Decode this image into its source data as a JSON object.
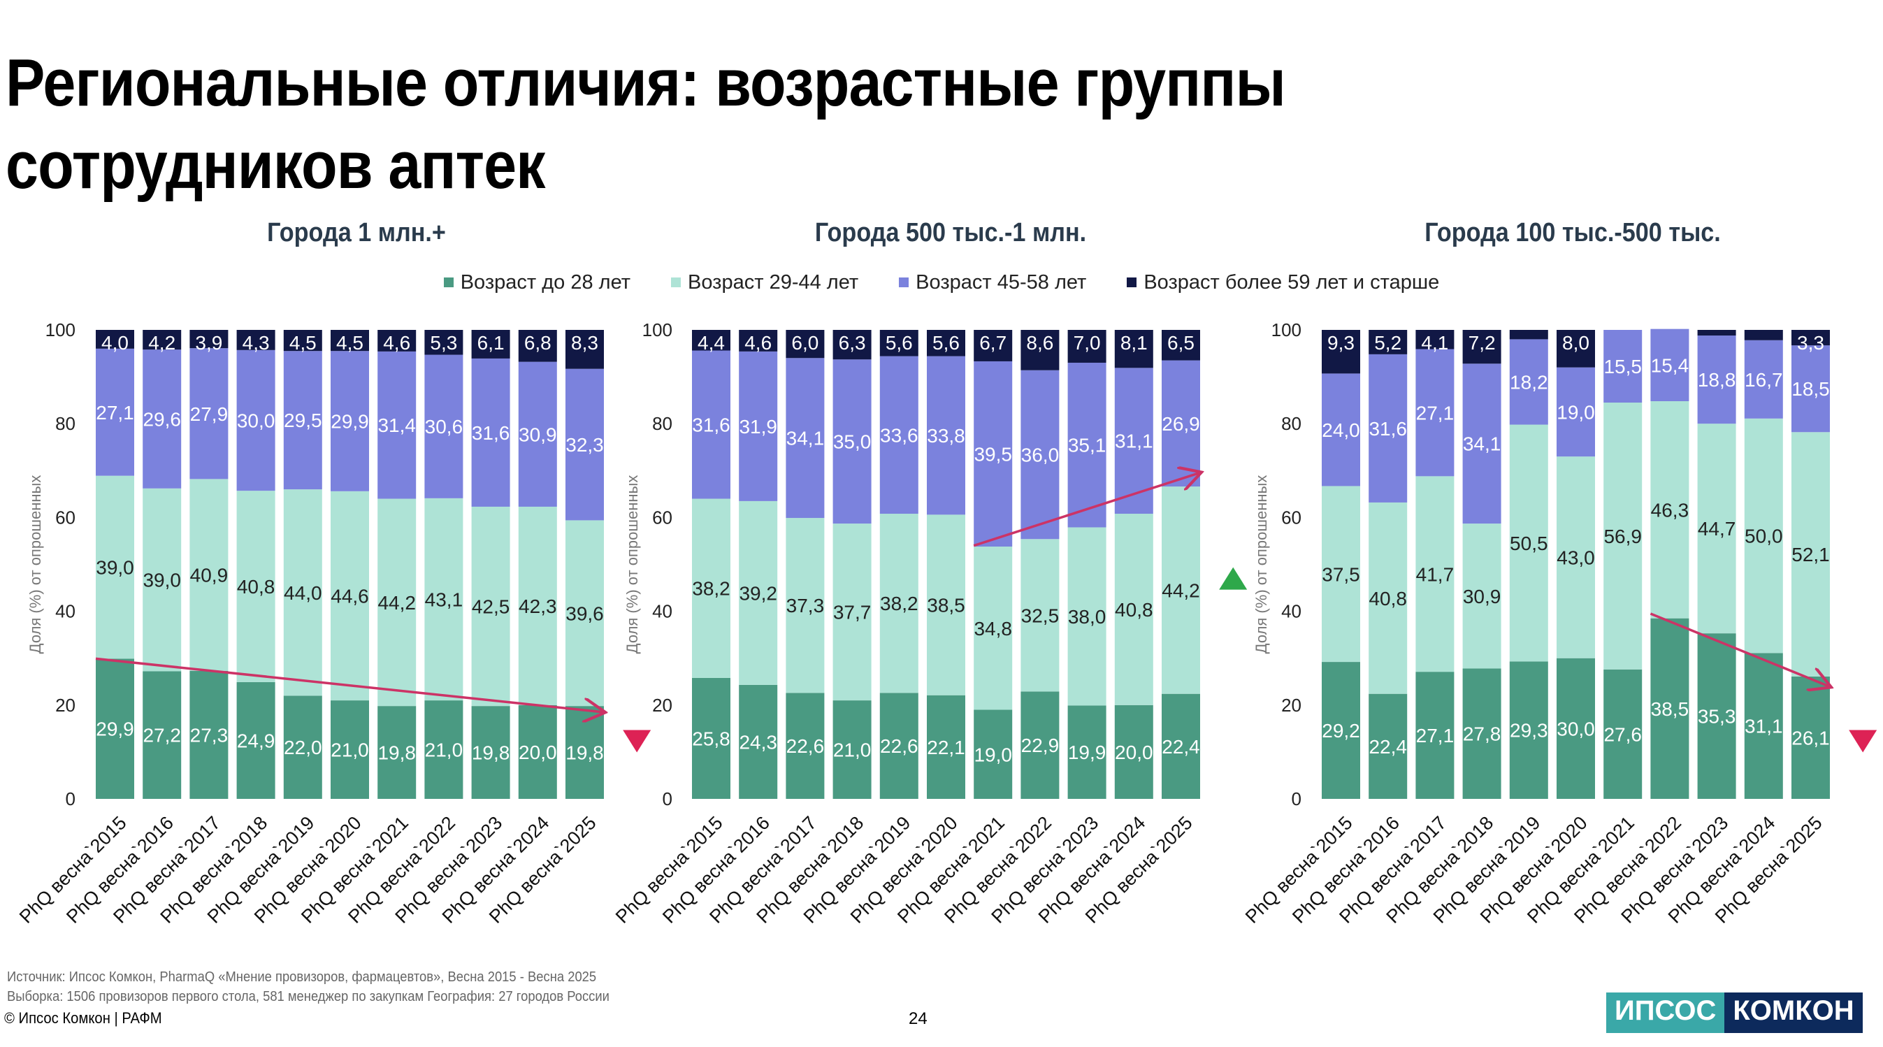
{
  "page": {
    "title": "Региональные отличия: возрастные группы сотрудников аптек",
    "source_line1": "Источник: Ипсос Комкон, PharmaQ «Мнение провизоров, фармацевтов», Весна 2015 - Весна 2025",
    "source_line2": "Выборка: 1506 провизоров первого стола, 581 менеджер по закупкам География: 27 городов России",
    "copyright": "© Ипсос Комкон | РАФМ",
    "page_number": "24",
    "logo_left": "ИПСОС",
    "logo_right": "КОМКОН"
  },
  "legend": [
    {
      "label": "Возраст до 28 лет",
      "color": "#4a9a82"
    },
    {
      "label": "Возраст 29-44 лет",
      "color": "#aee3d6"
    },
    {
      "label": "Возраст 45-58 лет",
      "color": "#7b82dd"
    },
    {
      "label": "Возраст более 59 лет и старше",
      "color": "#111845"
    }
  ],
  "chart_data": [
    {
      "type": "bar",
      "stacked": true,
      "title": "Города 1 млн.+",
      "ylabel": "Доля (%) от опрошенных",
      "ylim": [
        0,
        100
      ],
      "yticks": [
        0,
        20,
        40,
        60,
        80,
        100
      ],
      "categories": [
        "PhQ весна`2015",
        "PhQ весна`2016",
        "PhQ весна`2017",
        "PhQ весна`2018",
        "PhQ весна`2019",
        "PhQ весна`2020",
        "PhQ весна`2021",
        "PhQ весна`2022",
        "PhQ весна`2023",
        "PhQ весна`2024",
        "PhQ весна`2025"
      ],
      "series": [
        {
          "name": "Возраст до 28 лет",
          "values": [
            29.9,
            27.2,
            27.3,
            24.9,
            22.0,
            21.0,
            19.8,
            21.0,
            19.8,
            20.0,
            19.8
          ],
          "labels": [
            "29,9",
            "27,2",
            "27,3",
            "24,9",
            "22,0",
            "21,0",
            "19,8",
            "21,0",
            "19,8",
            "20,0",
            "19,8"
          ]
        },
        {
          "name": "Возраст 29-44 лет",
          "values": [
            39.0,
            39.0,
            40.9,
            40.8,
            44.0,
            44.6,
            44.2,
            43.1,
            42.5,
            42.3,
            39.6
          ],
          "labels": [
            "39,0",
            "39,0",
            "40,9",
            "40,8",
            "44,0",
            "44,6",
            "44,2",
            "43,1",
            "42,5",
            "42,3",
            "39,6"
          ]
        },
        {
          "name": "Возраст 45-58 лет",
          "values": [
            27.1,
            29.6,
            27.9,
            30.0,
            29.5,
            29.9,
            31.4,
            30.6,
            31.6,
            30.9,
            32.3
          ],
          "labels": [
            "27,1",
            "29,6",
            "27,9",
            "30,0",
            "29,5",
            "29,9",
            "31,4",
            "30,6",
            "31,6",
            "30,9",
            "32,3"
          ]
        },
        {
          "name": "Возраст более 59 лет и старше",
          "values": [
            4.0,
            4.2,
            3.9,
            4.3,
            4.5,
            4.5,
            4.6,
            5.3,
            6.1,
            6.8,
            8.3
          ],
          "labels": [
            "4,0",
            "4,2",
            "3,9",
            "4,3",
            "4,5",
            "4,5",
            "4,6",
            "5,3",
            "6,1",
            "6,8",
            "8,3"
          ]
        }
      ],
      "trend": {
        "from": [
          0,
          29.9
        ],
        "to": [
          10.8,
          18.5
        ],
        "direction": "down"
      }
    },
    {
      "type": "bar",
      "stacked": true,
      "title": "Города 500 тыс.-1 млн.",
      "ylabel": "Доля (%) от опрошенных",
      "ylim": [
        0,
        100
      ],
      "yticks": [
        0,
        20,
        40,
        60,
        80,
        100
      ],
      "categories": [
        "PhQ весна`2015",
        "PhQ весна`2016",
        "PhQ весна`2017",
        "PhQ весна`2018",
        "PhQ весна`2019",
        "PhQ весна`2020",
        "PhQ весна`2021",
        "PhQ весна`2022",
        "PhQ весна`2023",
        "PhQ весна`2024",
        "PhQ весна`2025"
      ],
      "series": [
        {
          "name": "Возраст до 28 лет",
          "values": [
            25.8,
            24.3,
            22.6,
            21.0,
            22.6,
            22.1,
            19.0,
            22.9,
            19.9,
            20.0,
            22.4
          ],
          "labels": [
            "25,8",
            "24,3",
            "22,6",
            "21,0",
            "22,6",
            "22,1",
            "19,0",
            "22,9",
            "19,9",
            "20,0",
            "22,4"
          ]
        },
        {
          "name": "Возраст 29-44 лет",
          "values": [
            38.2,
            39.2,
            37.3,
            37.7,
            38.2,
            38.5,
            34.8,
            32.5,
            38.0,
            40.8,
            44.2
          ],
          "labels": [
            "38,2",
            "39,2",
            "37,3",
            "37,7",
            "38,2",
            "38,5",
            "34,8",
            "32,5",
            "38,0",
            "40,8",
            "44,2"
          ]
        },
        {
          "name": "Возраст 45-58 лет",
          "values": [
            31.6,
            31.9,
            34.1,
            35.0,
            33.6,
            33.8,
            39.5,
            36.0,
            35.1,
            31.1,
            26.9
          ],
          "labels": [
            "31,6",
            "31,9",
            "34,1",
            "35,0",
            "33,6",
            "33,8",
            "39,5",
            "36,0",
            "35,1",
            "31,1",
            "26,9"
          ]
        },
        {
          "name": "Возраст более 59 лет и старше",
          "values": [
            4.4,
            4.6,
            6.0,
            6.3,
            5.6,
            5.6,
            6.7,
            8.6,
            7.0,
            8.1,
            6.5
          ],
          "labels": [
            "4,4",
            "4,6",
            "6,0",
            "6,3",
            "5,6",
            "5,6",
            "6,7",
            "8,6",
            "7,0",
            "8,1",
            "6,5"
          ]
        }
      ],
      "trend": {
        "from": [
          6.0,
          54.0
        ],
        "to": [
          10.8,
          69.5
        ],
        "direction": "up"
      }
    },
    {
      "type": "bar",
      "stacked": true,
      "title": "Города 100 тыс.-500 тыс.",
      "ylabel": "Доля (%) от опрошенных",
      "ylim": [
        0,
        100
      ],
      "yticks": [
        0,
        20,
        40,
        60,
        80,
        100
      ],
      "categories": [
        "PhQ весна`2015",
        "PhQ весна`2016",
        "PhQ весна`2017",
        "PhQ весна`2018",
        "PhQ весна`2019",
        "PhQ весна`2020",
        "PhQ весна`2021",
        "PhQ весна`2022",
        "PhQ весна`2023",
        "PhQ весна`2024",
        "PhQ весна`2025"
      ],
      "series": [
        {
          "name": "Возраст до 28 лет",
          "values": [
            29.2,
            22.4,
            27.1,
            27.8,
            29.3,
            30.0,
            27.6,
            38.5,
            35.3,
            31.1,
            26.1
          ],
          "labels": [
            "29,2",
            "22,4",
            "27,1",
            "27,8",
            "29,3",
            "30,0",
            "27,6",
            "38,5",
            "35,3",
            "31,1",
            "26,1"
          ]
        },
        {
          "name": "Возраст 29-44 лет",
          "values": [
            37.5,
            40.8,
            41.7,
            30.9,
            50.5,
            43.0,
            56.9,
            46.3,
            44.7,
            50.0,
            52.1
          ],
          "labels": [
            "37,5",
            "40,8",
            "41,7",
            "30,9",
            "50,5",
            "43,0",
            "56,9",
            "46,3",
            "44,7",
            "50,0",
            "52,1"
          ]
        },
        {
          "name": "Возраст 45-58 лет",
          "values": [
            24.0,
            31.6,
            27.1,
            34.1,
            18.2,
            19.0,
            15.5,
            15.4,
            18.8,
            16.7,
            18.5
          ],
          "labels": [
            "24,0",
            "31,6",
            "27,1",
            "34,1",
            "18,2",
            "19,0",
            "15,5",
            "15,4",
            "18,8",
            "16,7",
            "18,5"
          ]
        },
        {
          "name": "Возраст более 59 лет и старше",
          "values": [
            9.3,
            5.2,
            4.1,
            7.2,
            2.0,
            8.0,
            0.0,
            0.0,
            1.2,
            2.2,
            3.3
          ],
          "labels": [
            "9,3",
            "5,2",
            "4,1",
            "7,2",
            "",
            "8,0",
            "",
            "",
            "",
            "",
            "3,3"
          ]
        }
      ],
      "trend": {
        "from": [
          7.0,
          39.5
        ],
        "to": [
          10.8,
          24.0
        ],
        "direction": "down"
      }
    }
  ]
}
